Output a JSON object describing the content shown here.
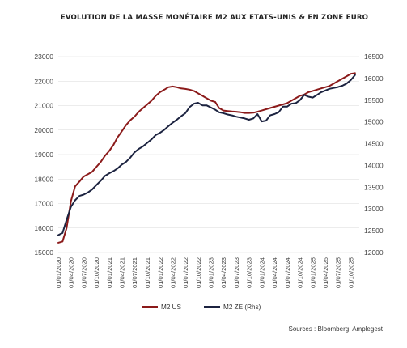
{
  "chart_data": {
    "type": "line",
    "title": "EVOLUTION DE LA MASSE MONÉTAIRE M2 AUX ETATS-UNIS & EN ZONE EURO",
    "source": "Sources : Bloomberg, Amplegest",
    "x_tick_labels": [
      "01/01/2020",
      "01/04/2020",
      "01/07/2020",
      "01/10/2020",
      "01/01/2021",
      "01/04/2021",
      "01/07/2021",
      "01/10/2021",
      "01/01/2022",
      "01/04/2022",
      "01/07/2022",
      "01/10/2022",
      "01/01/2023",
      "01/04/2023",
      "01/07/2023",
      "01/10/2023",
      "01/01/2024",
      "01/04/2024",
      "01/07/2024",
      "01/10/2024",
      "01/01/2025",
      "01/04/2025",
      "01/07/2025",
      "01/10/2025"
    ],
    "y_left": {
      "ylim": [
        15000,
        23000
      ],
      "ticks": [
        15000,
        16000,
        17000,
        18000,
        19000,
        20000,
        21000,
        22000,
        23000
      ]
    },
    "y_right": {
      "ylim": [
        12000,
        16500
      ],
      "ticks": [
        12000,
        12500,
        13000,
        13500,
        14000,
        14500,
        15000,
        15500,
        16000,
        16500
      ]
    },
    "grid": true,
    "legend_position": "bottom",
    "series": [
      {
        "name": "M2 US",
        "axis": "left",
        "color": "#8b1a1a",
        "points": [
          [
            "2020-01-01",
            15400
          ],
          [
            "2020-02-01",
            15450
          ],
          [
            "2020-03-01",
            16000
          ],
          [
            "2020-04-01",
            17100
          ],
          [
            "2020-05-01",
            17700
          ],
          [
            "2020-06-01",
            17900
          ],
          [
            "2020-07-01",
            18100
          ],
          [
            "2020-08-01",
            18200
          ],
          [
            "2020-09-01",
            18300
          ],
          [
            "2020-10-01",
            18500
          ],
          [
            "2020-11-01",
            18700
          ],
          [
            "2020-12-01",
            18950
          ],
          [
            "2021-01-01",
            19150
          ],
          [
            "2021-02-01",
            19400
          ],
          [
            "2021-03-01",
            19700
          ],
          [
            "2021-04-01",
            19950
          ],
          [
            "2021-05-01",
            20200
          ],
          [
            "2021-06-01",
            20400
          ],
          [
            "2021-07-01",
            20550
          ],
          [
            "2021-08-01",
            20750
          ],
          [
            "2021-09-01",
            20900
          ],
          [
            "2021-10-01",
            21050
          ],
          [
            "2021-11-01",
            21200
          ],
          [
            "2021-12-01",
            21400
          ],
          [
            "2022-01-01",
            21550
          ],
          [
            "2022-02-01",
            21650
          ],
          [
            "2022-03-01",
            21750
          ],
          [
            "2022-04-01",
            21780
          ],
          [
            "2022-05-01",
            21750
          ],
          [
            "2022-06-01",
            21700
          ],
          [
            "2022-07-01",
            21680
          ],
          [
            "2022-08-01",
            21650
          ],
          [
            "2022-09-01",
            21600
          ],
          [
            "2022-10-01",
            21500
          ],
          [
            "2022-11-01",
            21400
          ],
          [
            "2022-12-01",
            21300
          ],
          [
            "2023-01-01",
            21200
          ],
          [
            "2023-02-01",
            21150
          ],
          [
            "2023-03-01",
            20900
          ],
          [
            "2023-04-01",
            20800
          ],
          [
            "2023-05-01",
            20780
          ],
          [
            "2023-06-01",
            20760
          ],
          [
            "2023-07-01",
            20750
          ],
          [
            "2023-08-01",
            20730
          ],
          [
            "2023-09-01",
            20700
          ],
          [
            "2023-10-01",
            20700
          ],
          [
            "2023-11-01",
            20710
          ],
          [
            "2023-12-01",
            20750
          ],
          [
            "2024-01-01",
            20800
          ],
          [
            "2024-02-01",
            20850
          ],
          [
            "2024-03-01",
            20900
          ],
          [
            "2024-04-01",
            20950
          ],
          [
            "2024-05-01",
            21000
          ],
          [
            "2024-06-01",
            21050
          ],
          [
            "2024-07-01",
            21100
          ],
          [
            "2024-08-01",
            21200
          ],
          [
            "2024-09-01",
            21300
          ],
          [
            "2024-10-01",
            21400
          ],
          [
            "2024-11-01",
            21450
          ],
          [
            "2024-12-01",
            21550
          ],
          [
            "2025-01-01",
            21600
          ],
          [
            "2025-02-01",
            21650
          ],
          [
            "2025-03-01",
            21700
          ],
          [
            "2025-04-01",
            21750
          ],
          [
            "2025-05-01",
            21800
          ],
          [
            "2025-06-01",
            21900
          ],
          [
            "2025-07-01",
            22000
          ],
          [
            "2025-08-01",
            22100
          ],
          [
            "2025-09-01",
            22200
          ],
          [
            "2025-10-01",
            22300
          ],
          [
            "2025-11-01",
            22330
          ]
        ]
      },
      {
        "name": "M2 ZE (Rhs)",
        "axis": "right",
        "color": "#1c2340",
        "points": [
          [
            "2020-01-01",
            12400
          ],
          [
            "2020-02-01",
            12450
          ],
          [
            "2020-03-01",
            12750
          ],
          [
            "2020-04-01",
            13050
          ],
          [
            "2020-05-01",
            13200
          ],
          [
            "2020-06-01",
            13300
          ],
          [
            "2020-07-01",
            13330
          ],
          [
            "2020-08-01",
            13380
          ],
          [
            "2020-09-01",
            13450
          ],
          [
            "2020-10-01",
            13550
          ],
          [
            "2020-11-01",
            13650
          ],
          [
            "2020-12-01",
            13760
          ],
          [
            "2021-01-01",
            13820
          ],
          [
            "2021-02-01",
            13870
          ],
          [
            "2021-03-01",
            13930
          ],
          [
            "2021-04-01",
            14020
          ],
          [
            "2021-05-01",
            14080
          ],
          [
            "2021-06-01",
            14180
          ],
          [
            "2021-07-01",
            14300
          ],
          [
            "2021-08-01",
            14380
          ],
          [
            "2021-09-01",
            14440
          ],
          [
            "2021-10-01",
            14520
          ],
          [
            "2021-11-01",
            14600
          ],
          [
            "2021-12-01",
            14700
          ],
          [
            "2022-01-01",
            14750
          ],
          [
            "2022-02-01",
            14820
          ],
          [
            "2022-03-01",
            14900
          ],
          [
            "2022-04-01",
            14980
          ],
          [
            "2022-05-01",
            15050
          ],
          [
            "2022-06-01",
            15130
          ],
          [
            "2022-07-01",
            15200
          ],
          [
            "2022-08-01",
            15340
          ],
          [
            "2022-09-01",
            15420
          ],
          [
            "2022-10-01",
            15440
          ],
          [
            "2022-11-01",
            15380
          ],
          [
            "2022-12-01",
            15380
          ],
          [
            "2023-01-01",
            15330
          ],
          [
            "2023-02-01",
            15280
          ],
          [
            "2023-03-01",
            15220
          ],
          [
            "2023-04-01",
            15200
          ],
          [
            "2023-05-01",
            15170
          ],
          [
            "2023-06-01",
            15150
          ],
          [
            "2023-07-01",
            15120
          ],
          [
            "2023-08-01",
            15100
          ],
          [
            "2023-09-01",
            15080
          ],
          [
            "2023-10-01",
            15050
          ],
          [
            "2023-11-01",
            15080
          ],
          [
            "2023-12-01",
            15180
          ],
          [
            "2024-01-01",
            15010
          ],
          [
            "2024-02-01",
            15030
          ],
          [
            "2024-03-01",
            15150
          ],
          [
            "2024-04-01",
            15180
          ],
          [
            "2024-05-01",
            15220
          ],
          [
            "2024-06-01",
            15350
          ],
          [
            "2024-07-01",
            15350
          ],
          [
            "2024-08-01",
            15420
          ],
          [
            "2024-09-01",
            15430
          ],
          [
            "2024-10-01",
            15500
          ],
          [
            "2024-11-01",
            15620
          ],
          [
            "2024-12-01",
            15580
          ],
          [
            "2025-01-01",
            15560
          ],
          [
            "2025-02-01",
            15620
          ],
          [
            "2025-03-01",
            15680
          ],
          [
            "2025-04-01",
            15720
          ],
          [
            "2025-05-01",
            15760
          ],
          [
            "2025-06-01",
            15780
          ],
          [
            "2025-07-01",
            15800
          ],
          [
            "2025-08-01",
            15830
          ],
          [
            "2025-09-01",
            15880
          ],
          [
            "2025-10-01",
            15960
          ],
          [
            "2025-11-01",
            16080
          ]
        ]
      }
    ]
  }
}
